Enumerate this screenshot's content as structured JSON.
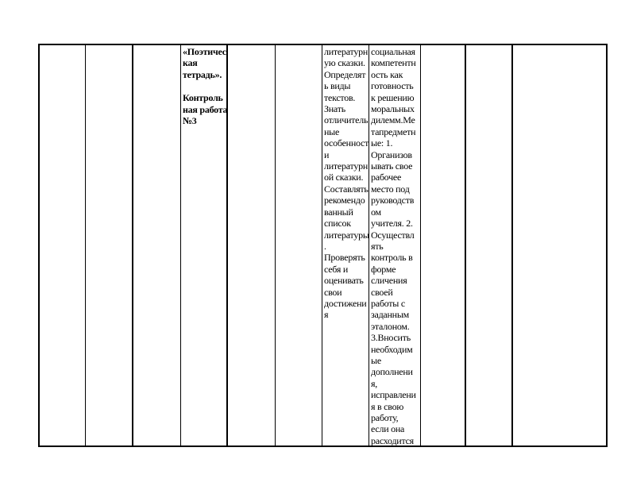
{
  "document": {
    "background_color": "#ffffff",
    "text_color": "#000000",
    "table_border_color": "#000000"
  },
  "table": {
    "cells": {
      "section_title": "«Поэтичес\nкая\nтетрадь».",
      "control_work": "Контроль\nная работа\n№3",
      "skills": "литературн\nую сказки.\nОпределят\nь виды\nтекстов.\nЗнать\nотличитель\nные\nособенност\nи\nлитературн\nой сказки.\nСоставлять\nрекомендо\nванный\nсписок\nлитературы\n.\nПроверять\nсебя и\nоценивать\nсвои\nдостижени\nя",
      "competencies": "социальная\nкомпетентн\nость как\nготовность\nк решению\nморальных\nдилемм.Ме\nтапредметн\nые: 1.\nОрганизов\nывать свое\nрабочее\nместо под\nруководств\nом\nучителя. 2.\nОсуществл\nять\nконтроль в\nформе\nсличения\nсвоей\nработы с\nзаданным\nэталоном.\n3.Вносить\nнеобходим\nые\nдополнени\nя,\nисправлени\nя в свою\nработу,\nесли она\nрасходится"
    }
  }
}
